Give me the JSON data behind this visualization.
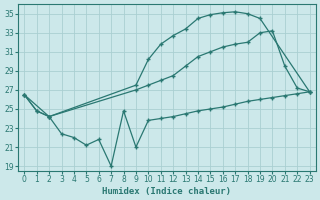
{
  "xlabel": "Humidex (Indice chaleur)",
  "xlim": [
    -0.5,
    23.5
  ],
  "ylim": [
    18.5,
    36.0
  ],
  "yticks": [
    19,
    21,
    23,
    25,
    27,
    29,
    31,
    33,
    35
  ],
  "xticks": [
    0,
    1,
    2,
    3,
    4,
    5,
    6,
    7,
    8,
    9,
    10,
    11,
    12,
    13,
    14,
    15,
    16,
    17,
    18,
    19,
    20,
    21,
    22,
    23
  ],
  "bg_color": "#cce8ea",
  "grid_color": "#aacfd2",
  "line_color": "#2a7872",
  "lines": [
    {
      "x": [
        0,
        1,
        2,
        9,
        10,
        11,
        12,
        13,
        14,
        15,
        16,
        17,
        18,
        19,
        23
      ],
      "y": [
        26.5,
        24.8,
        24.2,
        27.5,
        30.2,
        31.8,
        32.7,
        33.4,
        34.5,
        34.9,
        35.1,
        35.2,
        35.0,
        34.5,
        26.8
      ]
    },
    {
      "x": [
        0,
        1,
        2,
        9,
        10,
        11,
        12,
        13,
        14,
        15,
        16,
        17,
        18,
        19,
        20,
        21,
        22,
        23
      ],
      "y": [
        26.5,
        24.8,
        24.2,
        27.0,
        27.5,
        28.0,
        28.5,
        29.5,
        30.5,
        31.0,
        31.5,
        31.8,
        32.0,
        33.0,
        33.2,
        29.5,
        27.2,
        26.8
      ]
    },
    {
      "x": [
        0,
        2,
        3,
        4,
        5,
        6,
        7,
        8,
        9,
        10,
        11,
        12,
        13,
        14,
        15,
        16,
        17,
        18,
        19,
        20,
        21,
        22,
        23
      ],
      "y": [
        26.5,
        24.2,
        22.4,
        22.0,
        21.2,
        21.8,
        19.0,
        24.8,
        21.0,
        23.8,
        24.0,
        24.2,
        24.5,
        24.8,
        25.0,
        25.2,
        25.5,
        25.8,
        26.0,
        26.2,
        26.4,
        26.6,
        26.8
      ]
    }
  ]
}
